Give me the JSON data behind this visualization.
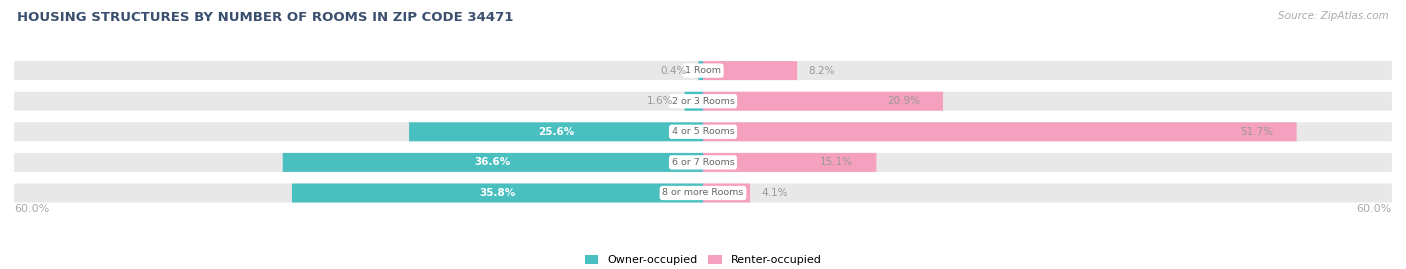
{
  "title": "HOUSING STRUCTURES BY NUMBER OF ROOMS IN ZIP CODE 34471",
  "source": "Source: ZipAtlas.com",
  "categories": [
    "1 Room",
    "2 or 3 Rooms",
    "4 or 5 Rooms",
    "6 or 7 Rooms",
    "8 or more Rooms"
  ],
  "owner_pct": [
    0.4,
    1.6,
    25.6,
    36.6,
    35.8
  ],
  "renter_pct": [
    8.2,
    20.9,
    51.7,
    15.1,
    4.1
  ],
  "max_val": 60.0,
  "owner_color": "#49BFBF",
  "renter_color": "#F4A0BE",
  "owner_label": "Owner-occupied",
  "renter_label": "Renter-occupied",
  "bar_bg_color": "#E8E8E8",
  "bar_height": 0.62,
  "label_color_outside": "#999999",
  "label_color_inside_owner": "#FFFFFF",
  "axis_label_color": "#AAAAAA",
  "title_color": "#3A4F6E",
  "source_color": "#AAAAAA",
  "background_color": "#FFFFFF",
  "category_label_color": "#666666",
  "cat_label_threshold": 8,
  "owner_inside_threshold": 10,
  "renter_inside_threshold": 10
}
